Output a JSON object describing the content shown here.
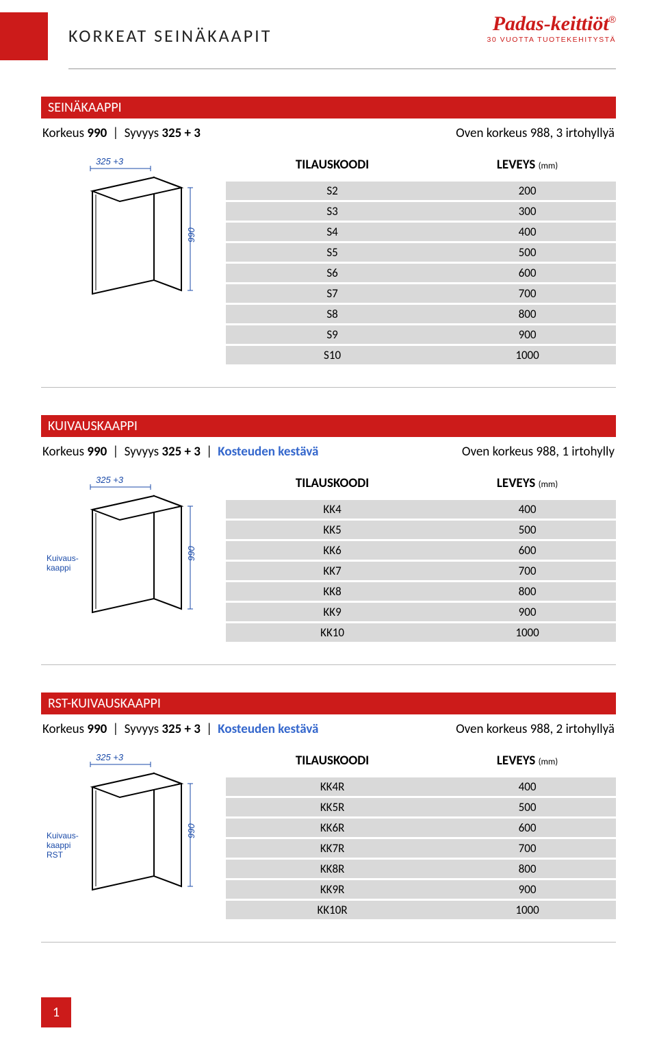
{
  "header": {
    "title": "KORKEAT SEINÄKAAPIT",
    "logo_main": "Padas-keittiöt",
    "logo_reg": "®",
    "logo_sub": "30 VUOTTA TUOTEKEHITYSTÄ"
  },
  "sections": [
    {
      "bar": "SEINÄKAAPPI",
      "spec_korkeus_label": "Korkeus ",
      "spec_korkeus_val": "990",
      "spec_syvyys_label": " Syvyys ",
      "spec_syvyys_val": "325 + 3",
      "spec_extra": "",
      "spec_right": "Oven korkeus 988, 3 irtohyllyä",
      "col1": "TILAUSKOODI",
      "col2": "LEVEYS ",
      "col2_unit": "(mm)",
      "rows": [
        [
          "S2",
          "200"
        ],
        [
          "S3",
          "300"
        ],
        [
          "S4",
          "400"
        ],
        [
          "S5",
          "500"
        ],
        [
          "S6",
          "600"
        ],
        [
          "S7",
          "700"
        ],
        [
          "S8",
          "800"
        ],
        [
          "S9",
          "900"
        ],
        [
          "S10",
          "1000"
        ]
      ],
      "diagram": {
        "top_label": "325 +3",
        "side_label": "990",
        "inner_label": ""
      }
    },
    {
      "bar": "KUIVAUSKAAPPI",
      "spec_korkeus_label": "Korkeus ",
      "spec_korkeus_val": "990",
      "spec_syvyys_label": " Syvyys ",
      "spec_syvyys_val": "325 + 3",
      "spec_extra": "Kosteuden kestävä",
      "spec_right": "Oven korkeus 988, 1 irtohylly",
      "col1": "TILAUSKOODI",
      "col2": "LEVEYS ",
      "col2_unit": "(mm)",
      "rows": [
        [
          "KK4",
          "400"
        ],
        [
          "KK5",
          "500"
        ],
        [
          "KK6",
          "600"
        ],
        [
          "KK7",
          "700"
        ],
        [
          "KK8",
          "800"
        ],
        [
          "KK9",
          "900"
        ],
        [
          "KK10",
          "1000"
        ]
      ],
      "diagram": {
        "top_label": "325 +3",
        "side_label": "990",
        "inner_label": "Kuivaus-\nkaappi"
      }
    },
    {
      "bar": "RST-KUIVAUSKAAPPI",
      "spec_korkeus_label": "Korkeus ",
      "spec_korkeus_val": "990",
      "spec_syvyys_label": " Syvyys ",
      "spec_syvyys_val": "325 + 3",
      "spec_extra": "Kosteuden kestävä",
      "spec_right": "Oven korkeus 988, 2 irtohyllyä",
      "col1": "TILAUSKOODI",
      "col2": "LEVEYS ",
      "col2_unit": "(mm)",
      "rows": [
        [
          "KK4R",
          "400"
        ],
        [
          "KK5R",
          "500"
        ],
        [
          "KK6R",
          "600"
        ],
        [
          "KK7R",
          "700"
        ],
        [
          "KK8R",
          "800"
        ],
        [
          "KK9R",
          "900"
        ],
        [
          "KK10R",
          "1000"
        ]
      ],
      "diagram": {
        "top_label": "325 +3",
        "side_label": "990",
        "inner_label": "Kuivaus-\nkaappi\nRST"
      }
    }
  ],
  "footer": {
    "page_number": "1"
  }
}
